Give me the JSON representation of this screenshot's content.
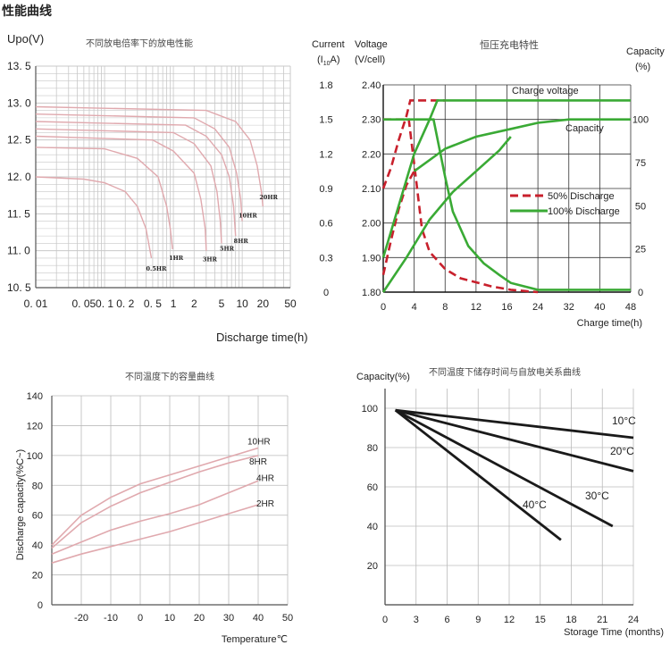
{
  "page_title": "性能曲线",
  "chart_data": [
    {
      "type": "line",
      "title": "不同放电倍率下的放电性能",
      "ylabel": "Upo(V)",
      "xlabel": "Discharge time(h)",
      "xscale": "log",
      "xlim": [
        0.01,
        50
      ],
      "ylim": [
        10.5,
        13.5
      ],
      "x_ticks": [
        0.01,
        0.05,
        0.1,
        0.2,
        0.5,
        1,
        2,
        5,
        10,
        20,
        50
      ],
      "x_tick_labels": [
        "0. 01",
        "0. 05",
        "0. 1",
        "0. 2",
        "0. 5",
        "1",
        "2",
        "5",
        "10",
        "20",
        "50"
      ],
      "y_ticks": [
        10.5,
        11.0,
        11.5,
        12.0,
        12.5,
        13.0,
        13.5
      ],
      "y_tick_labels": [
        "10. 5",
        "11. 0",
        "11. 5",
        "12. 0",
        "12. 5",
        "13. 0",
        "13. 5"
      ],
      "grid": true,
      "series": [
        {
          "name": "0.5HR",
          "points": [
            [
              0.01,
              12.0
            ],
            [
              0.05,
              11.97
            ],
            [
              0.1,
              11.92
            ],
            [
              0.2,
              11.8
            ],
            [
              0.3,
              11.6
            ],
            [
              0.4,
              11.3
            ],
            [
              0.48,
              10.9
            ]
          ]
        },
        {
          "name": "1HR",
          "points": [
            [
              0.01,
              12.4
            ],
            [
              0.1,
              12.38
            ],
            [
              0.3,
              12.25
            ],
            [
              0.6,
              12.0
            ],
            [
              0.8,
              11.6
            ],
            [
              0.9,
              11.3
            ],
            [
              0.97,
              11.02
            ]
          ]
        },
        {
          "name": "3HR",
          "points": [
            [
              0.01,
              12.55
            ],
            [
              0.5,
              12.5
            ],
            [
              1.0,
              12.35
            ],
            [
              2.0,
              12.05
            ],
            [
              2.5,
              11.7
            ],
            [
              2.9,
              11.3
            ],
            [
              3.0,
              11.0
            ]
          ]
        },
        {
          "name": "5HR",
          "points": [
            [
              0.01,
              12.65
            ],
            [
              1.0,
              12.6
            ],
            [
              2.0,
              12.45
            ],
            [
              3.5,
              12.15
            ],
            [
              4.3,
              11.8
            ],
            [
              4.8,
              11.4
            ],
            [
              5.0,
              11.1
            ]
          ]
        },
        {
          "name": "8HR",
          "points": [
            [
              0.01,
              12.75
            ],
            [
              1.5,
              12.7
            ],
            [
              3.0,
              12.55
            ],
            [
              5.0,
              12.3
            ],
            [
              6.5,
              12.0
            ],
            [
              7.5,
              11.6
            ],
            [
              8.0,
              11.2
            ]
          ]
        },
        {
          "name": "10HR",
          "points": [
            [
              0.01,
              12.85
            ],
            [
              2.0,
              12.8
            ],
            [
              4.0,
              12.65
            ],
            [
              6.5,
              12.4
            ],
            [
              8.3,
              12.05
            ],
            [
              9.5,
              11.7
            ],
            [
              10.0,
              11.4
            ]
          ]
        },
        {
          "name": "20HR",
          "points": [
            [
              0.01,
              12.95
            ],
            [
              3.0,
              12.9
            ],
            [
              8.0,
              12.75
            ],
            [
              13.0,
              12.5
            ],
            [
              16.5,
              12.15
            ],
            [
              19.0,
              11.8
            ],
            [
              20.0,
              11.6
            ]
          ]
        }
      ],
      "labels": [
        "0.5HR",
        "1HR",
        "3HR",
        "5HR",
        "8HR",
        "10HR",
        "20HR"
      ],
      "colors": {
        "curve": "#e0a9ae",
        "grid": "#c8c8c8",
        "axis": "#555555"
      }
    },
    {
      "type": "line",
      "title": "恒压充电特性",
      "left_axis": {
        "label_line1": "Current",
        "label_line2": "(I",
        "label_sub": "10",
        "label_line3": "A)",
        "ticks": [
          0,
          0.3,
          0.6,
          0.9,
          1.2,
          1.5,
          1.8
        ],
        "tick_labels": [
          "0",
          "0.3",
          "0.6",
          "0.9",
          "1.2",
          "1.5",
          "1.8"
        ]
      },
      "voltage_axis": {
        "label_line1": "Voltage",
        "label_line2": "(V/cell)",
        "ticks": [
          1.8,
          1.9,
          2.0,
          2.1,
          2.2,
          2.3,
          2.4
        ],
        "tick_labels": [
          "1.80",
          "1.90",
          "2.00",
          "2.10",
          "2.20",
          "2.30",
          "2.40"
        ]
      },
      "right_axis": {
        "label_line1": "Capacity",
        "label_line2": "(%)",
        "ticks": [
          0,
          25,
          50,
          75,
          100
        ],
        "tick_labels": [
          "0",
          "25",
          "50",
          "75",
          "100"
        ]
      },
      "x_ticks": [
        "0",
        "4",
        "8",
        "12",
        "16",
        "24",
        "32",
        "40",
        "48"
      ],
      "xlabel": "Charge time(h)",
      "legend": [
        {
          "name": "50% Discharge",
          "style": "dashed"
        },
        {
          "name": "100% Discharge",
          "style": "solid"
        }
      ],
      "annotations": [
        "Charge voltage",
        "Capacity"
      ],
      "series": [
        {
          "name": "50% Discharge voltage",
          "axis": "voltage",
          "points": [
            [
              0,
              2.1
            ],
            [
              1,
              2.16
            ],
            [
              2,
              2.24
            ],
            [
              3,
              2.31
            ],
            [
              3.5,
              2.355
            ],
            [
              5,
              2.355
            ],
            [
              8,
              2.355
            ]
          ]
        },
        {
          "name": "50% Discharge current",
          "axis": "current",
          "points": [
            [
              0,
              1.5
            ],
            [
              3.3,
              1.5
            ],
            [
              4.2,
              1.0
            ],
            [
              5,
              0.55
            ],
            [
              6,
              0.35
            ],
            [
              8,
              0.2
            ],
            [
              10,
              0.12
            ],
            [
              14,
              0.05
            ],
            [
              17,
              0.02
            ],
            [
              24,
              0
            ]
          ]
        },
        {
          "name": "50% Discharge capacity",
          "axis": "capacity",
          "points": [
            [
              0,
              10
            ],
            [
              1,
              30
            ],
            [
              2,
              48
            ],
            [
              3,
              62
            ],
            [
              4,
              70
            ]
          ]
        },
        {
          "name": "100% Discharge voltage",
          "axis": "voltage",
          "points": [
            [
              0,
              1.9
            ],
            [
              2,
              2.05
            ],
            [
              4,
              2.2
            ],
            [
              6,
              2.3
            ],
            [
              7,
              2.355
            ],
            [
              8,
              2.355
            ]
          ]
        },
        {
          "name": "100% Discharge current",
          "axis": "current",
          "points": [
            [
              0,
              1.5
            ],
            [
              6.5,
              1.5
            ],
            [
              8,
              1.0
            ],
            [
              9,
              0.7
            ],
            [
              11,
              0.4
            ],
            [
              13,
              0.25
            ],
            [
              15,
              0.15
            ],
            [
              17,
              0.08
            ],
            [
              24,
              0.02
            ],
            [
              48,
              0.02
            ]
          ]
        },
        {
          "name": "100% Discharge capacity",
          "axis": "capacity",
          "points": [
            [
              0,
              0
            ],
            [
              3,
              20
            ],
            [
              6,
              42
            ],
            [
              9,
              58
            ],
            [
              12,
              70
            ],
            [
              15,
              82
            ],
            [
              17,
              90
            ]
          ]
        },
        {
          "name": "Capacity",
          "axis": "capacity",
          "points": [
            [
              4,
              70
            ],
            [
              8,
              83
            ],
            [
              12,
              90
            ],
            [
              16,
              94
            ],
            [
              24,
              98
            ],
            [
              32,
              100
            ],
            [
              48,
              100
            ]
          ]
        },
        {
          "name": "Charge voltage",
          "axis": "voltage",
          "points": [
            [
              8,
              2.355
            ],
            [
              16,
              2.355
            ],
            [
              48,
              2.355
            ]
          ]
        }
      ],
      "colors": {
        "red": "#c8202c",
        "green": "#3aaa35",
        "grid": "#333333"
      }
    },
    {
      "type": "line",
      "title": "不同温度下的容量曲线",
      "ylabel": "Discharge capacity(%C~)",
      "xlabel": "Temperature℃",
      "xlim": [
        -30,
        50
      ],
      "ylim": [
        0,
        140
      ],
      "x_ticks": [
        -20,
        -10,
        0,
        10,
        20,
        30,
        40,
        50
      ],
      "y_ticks": [
        0,
        20,
        40,
        60,
        80,
        100,
        120,
        140
      ],
      "grid": true,
      "series": [
        {
          "name": "10HR",
          "points": [
            [
              -30,
              40
            ],
            [
              -20,
              60
            ],
            [
              -10,
              72
            ],
            [
              0,
              81
            ],
            [
              10,
              87
            ],
            [
              20,
              93
            ],
            [
              30,
              99
            ],
            [
              40,
              105
            ]
          ]
        },
        {
          "name": "8HR",
          "points": [
            [
              -30,
              38
            ],
            [
              -20,
              55
            ],
            [
              -10,
              66
            ],
            [
              0,
              75
            ],
            [
              10,
              82
            ],
            [
              20,
              89
            ],
            [
              30,
              95
            ],
            [
              40,
              100
            ]
          ]
        },
        {
          "name": "4HR",
          "points": [
            [
              -30,
              34
            ],
            [
              -20,
              42
            ],
            [
              -10,
              50
            ],
            [
              0,
              56
            ],
            [
              10,
              61
            ],
            [
              20,
              67
            ],
            [
              30,
              75
            ],
            [
              40,
              83
            ]
          ]
        },
        {
          "name": "2HR",
          "points": [
            [
              -30,
              28
            ],
            [
              -20,
              34
            ],
            [
              -10,
              39
            ],
            [
              0,
              44
            ],
            [
              10,
              49
            ],
            [
              20,
              55
            ],
            [
              30,
              61
            ],
            [
              40,
              67
            ]
          ]
        }
      ],
      "colors": {
        "curve": "#e0a9ae",
        "grid": "#bbbbbb"
      }
    },
    {
      "type": "line",
      "title": "不同温度下储存时间与自放电关系曲线",
      "ylabel": "Capacity(%)",
      "xlabel": "Storage Time (months)",
      "xlim": [
        0,
        24
      ],
      "ylim": [
        0,
        100
      ],
      "x_ticks": [
        0,
        3,
        6,
        9,
        12,
        15,
        18,
        21,
        24
      ],
      "y_ticks": [
        20,
        40,
        60,
        80,
        100
      ],
      "grid": true,
      "series": [
        {
          "name": "10°C",
          "points": [
            [
              1,
              99
            ],
            [
              24,
              85
            ]
          ]
        },
        {
          "name": "20°C",
          "points": [
            [
              1,
              99
            ],
            [
              24,
              68
            ]
          ]
        },
        {
          "name": "30°C",
          "points": [
            [
              1,
              99
            ],
            [
              22,
              40
            ]
          ]
        },
        {
          "name": "40°C",
          "points": [
            [
              1,
              99
            ],
            [
              17,
              33
            ]
          ]
        }
      ],
      "colors": {
        "line": "#1a1a1a",
        "grid": "#bbbbbb"
      }
    }
  ]
}
